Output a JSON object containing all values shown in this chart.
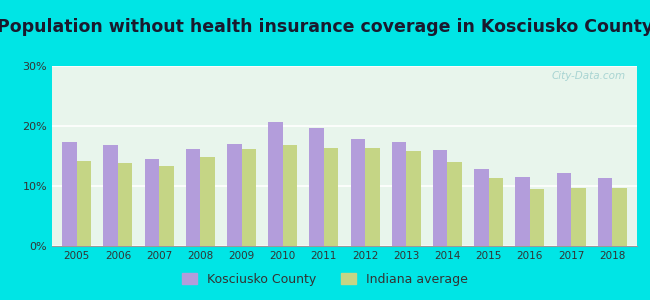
{
  "title": "Population without health insurance coverage in Kosciusko County",
  "years": [
    2005,
    2006,
    2007,
    2008,
    2009,
    2010,
    2011,
    2012,
    2013,
    2014,
    2015,
    2016,
    2017,
    2018
  ],
  "kosciusko": [
    0.173,
    0.168,
    0.145,
    0.162,
    0.17,
    0.207,
    0.196,
    0.178,
    0.173,
    0.16,
    0.128,
    0.115,
    0.122,
    0.113
  ],
  "indiana": [
    0.141,
    0.139,
    0.133,
    0.149,
    0.161,
    0.168,
    0.163,
    0.163,
    0.159,
    0.14,
    0.113,
    0.095,
    0.096,
    0.097
  ],
  "kosciusko_color": "#b39ddb",
  "indiana_color": "#c5d585",
  "background_outer": "#00e5e5",
  "background_plot": "#e8f5ec",
  "ylim": [
    0,
    0.3
  ],
  "yticks": [
    0.0,
    0.1,
    0.2,
    0.3
  ],
  "ytick_labels": [
    "0%",
    "10%",
    "20%",
    "30%"
  ],
  "title_fontsize": 12.5,
  "bar_width": 0.35,
  "legend_kosciusko": "Kosciusko County",
  "legend_indiana": "Indiana average"
}
